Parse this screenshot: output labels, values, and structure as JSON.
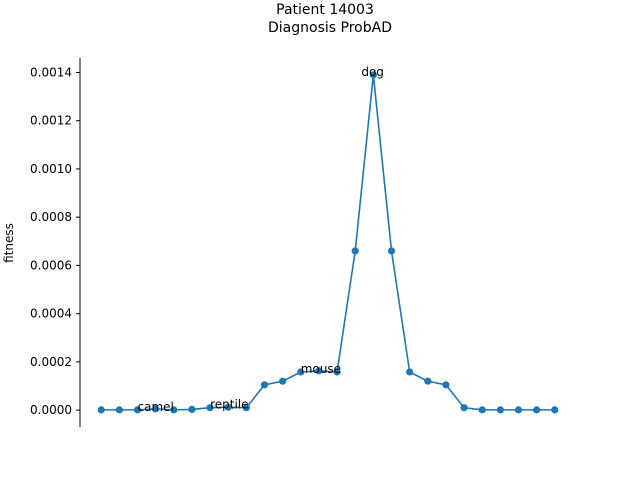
{
  "chart_data": {
    "type": "line",
    "title_lines": [
      "Patient 14003",
      "Diagnosis ProbAD"
    ],
    "xlabel": "",
    "ylabel": "fitness",
    "x": [
      0,
      1,
      2,
      3,
      4,
      5,
      6,
      7,
      8,
      9,
      10,
      11,
      12,
      13,
      14,
      15,
      16,
      17,
      18,
      19,
      20,
      21,
      22,
      23,
      24,
      25
    ],
    "values": [
      1e-06,
      1e-06,
      1e-06,
      5e-06,
      1e-06,
      3e-06,
      1e-05,
      1.2e-05,
      1e-05,
      0.000105,
      0.00012,
      0.000158,
      0.000163,
      0.000158,
      0.00066,
      0.00139,
      0.00066,
      0.000158,
      0.00012,
      0.000105,
      1e-05,
      1e-06,
      1e-06,
      1e-06,
      1e-06,
      1e-06
    ],
    "ylim": [
      -7e-05,
      0.00146
    ],
    "yticks": [
      0.0,
      0.0002,
      0.0004,
      0.0006,
      0.0008,
      0.001,
      0.0012,
      0.0014
    ],
    "ytick_labels": [
      "0.0000",
      "0.0002",
      "0.0004",
      "0.0006",
      "0.0008",
      "0.0010",
      "0.0012",
      "0.0014"
    ],
    "annotations": [
      {
        "text": "camel",
        "x": 2,
        "y": 1e-06
      },
      {
        "text": "reptile",
        "x": 6,
        "y": 1e-05
      },
      {
        "text": "mouse",
        "x": 11,
        "y": 0.000158
      },
      {
        "text": "dog",
        "x": 15,
        "y": 0.00139
      }
    ],
    "series_color": "#1f77b4",
    "grid": false
  }
}
